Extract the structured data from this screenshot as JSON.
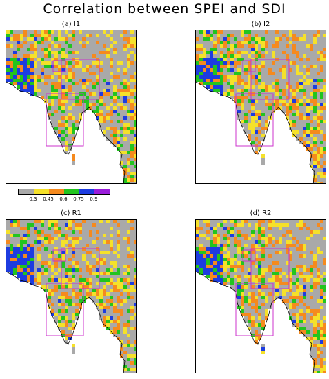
{
  "title": "Correlation between SPEI and SDI",
  "panels": [
    {
      "id": "a",
      "label": "(a) I1"
    },
    {
      "id": "b",
      "label": "(b) I2"
    },
    {
      "id": "c",
      "label": "(c) R1"
    },
    {
      "id": "d",
      "label": "(d) R2"
    }
  ],
  "legend": {
    "ticks": [
      "0.3",
      "0.45",
      "0.6",
      "0.75",
      "0.9"
    ],
    "colors": [
      "#a9a9a9",
      "#f5e12a",
      "#f58a1e",
      "#22c41f",
      "#1d3ce0",
      "#9a1ddb"
    ]
  },
  "map_colors": {
    "land_gray": "#a9a9a9",
    "box_color": "#cc33cc",
    "coast": "#000000"
  }
}
